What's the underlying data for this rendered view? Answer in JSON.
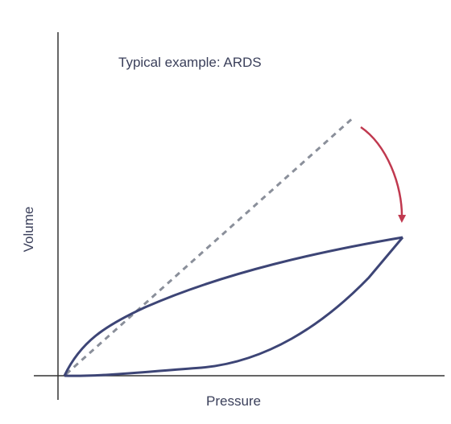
{
  "title": "Typical example:  ARDS",
  "x_label": "Pressure",
  "y_label": "Volume"
}
